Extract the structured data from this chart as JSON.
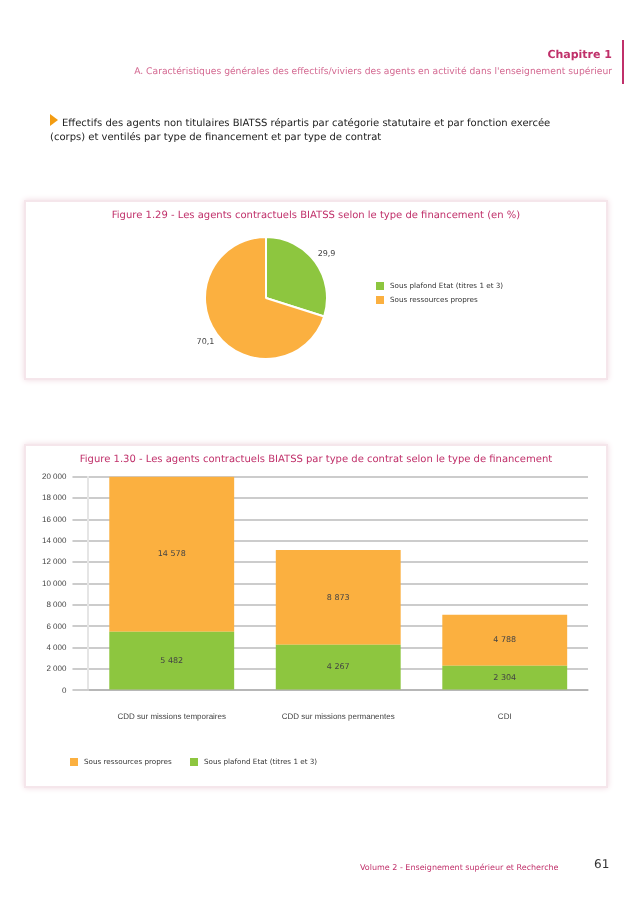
{
  "chart_data": [
    {
      "type": "pie",
      "title": "Figure 1.29 - Les agents contractuels BIATSS selon le type de financement (en %)",
      "categories": [
        "Sous plafond Etat (titres 1 et 3)",
        "Sous ressources propres"
      ],
      "values": [
        29.9,
        70.1
      ],
      "colors": [
        "#8dc63f",
        "#fbb040"
      ],
      "value_labels": [
        "29,9",
        "70,1"
      ],
      "legend": "right",
      "annotations": [
        "Chapitre 1",
        "A. Caractéristiques générales des effectifs/viviers des agents en activité dans l'enseignement supérieur",
        "Effectifs des agents non titulaires BIATSS répartis par catégorie statutaire et par fonction exercée (corps) et ventilés par type de financement et par type de contrat"
      ]
    },
    {
      "type": "bar",
      "stacked": true,
      "title": "Figure 1.30 - Les agents contractuels BIATSS par type de contrat selon le type de financement",
      "categories": [
        "CDD sur missions temporaires",
        "CDD sur missions permanentes",
        "CDI"
      ],
      "series": [
        {
          "name": "Sous plafond Etat (titres 1 et 3)",
          "color": "#8dc63f",
          "values": [
            5482,
            4267,
            2304
          ],
          "value_labels": [
            "5 482",
            "4 267",
            "2 304"
          ]
        },
        {
          "name": "Sous ressources propres",
          "color": "#fbb040",
          "values": [
            14578,
            8873,
            4788
          ],
          "value_labels": [
            "14 578",
            "8 873",
            "4 788"
          ]
        }
      ],
      "ylim": [
        0,
        20000
      ],
      "yticks": [
        {
          "value": 0,
          "label": "0"
        },
        {
          "value": 2000,
          "label": "2 000"
        },
        {
          "value": 4000,
          "label": "4 000"
        },
        {
          "value": 6000,
          "label": "6 000"
        },
        {
          "value": 8000,
          "label": "8 000"
        },
        {
          "value": 10000,
          "label": "10 000"
        },
        {
          "value": 12000,
          "label": "12 000"
        },
        {
          "value": 14000,
          "label": "14 000"
        },
        {
          "value": 16000,
          "label": "16 000"
        },
        {
          "value": 18000,
          "label": "18 000"
        },
        {
          "value": 20000,
          "label": "20 000"
        }
      ],
      "grid": "y",
      "legend": "bottom left",
      "annotations": [
        "Volume 2 - Enseignement supérieur et Recherche",
        "61"
      ]
    }
  ]
}
